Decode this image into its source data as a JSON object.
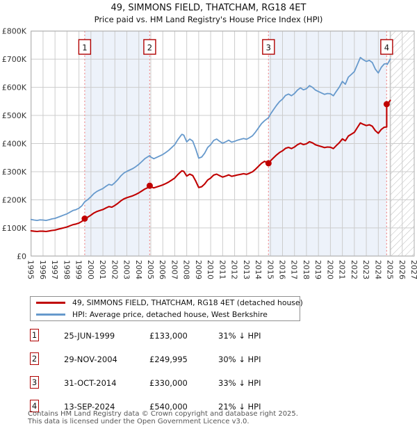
{
  "title": "49, SIMMONS FIELD, THATCHAM, RG18 4ET",
  "subtitle": "Price paid vs. HM Land Registry's House Price Index (HPI)",
  "legend": {
    "items": [
      {
        "label": "49, SIMMONS FIELD, THATCHAM, RG18 4ET (detached house)",
        "color": "#c00000"
      },
      {
        "label": "HPI: Average price, detached house, West Berkshire",
        "color": "#6699cc"
      }
    ]
  },
  "table": {
    "rows": [
      {
        "num": "1",
        "date": "25-JUN-1999",
        "price": "£133,000",
        "vs_hpi": "31% ↓ HPI"
      },
      {
        "num": "2",
        "date": "29-NOV-2004",
        "price": "£249,995",
        "vs_hpi": "30% ↓ HPI"
      },
      {
        "num": "3",
        "date": "31-OCT-2014",
        "price": "£330,000",
        "vs_hpi": "33% ↓ HPI"
      },
      {
        "num": "4",
        "date": "13-SEP-2024",
        "price": "£540,000",
        "vs_hpi": "21% ↓ HPI"
      }
    ]
  },
  "footer": {
    "line1": "Contains HM Land Registry data © Crown copyright and database right 2025.",
    "line2": "This data is licensed under the Open Government Licence v3.0."
  },
  "chart_data": {
    "type": "line",
    "title": "49, SIMMONS FIELD, THATCHAM, RG18 4ET",
    "subtitle": "Price paid vs. HM Land Registry's House Price Index (HPI)",
    "units": "GBP thousands",
    "xlim": [
      1995,
      2027
    ],
    "ylim": [
      0,
      800
    ],
    "grid": true,
    "legend_position": "bottom",
    "x_ticks": [
      1995,
      1996,
      1997,
      1998,
      1999,
      2000,
      2001,
      2002,
      2003,
      2004,
      2005,
      2006,
      2007,
      2008,
      2009,
      2010,
      2011,
      2012,
      2013,
      2014,
      2015,
      2016,
      2017,
      2018,
      2019,
      2020,
      2021,
      2022,
      2023,
      2024,
      2025,
      2026,
      2027
    ],
    "y_ticks": [
      {
        "value": 0,
        "label": "£0"
      },
      {
        "value": 100,
        "label": "£100K"
      },
      {
        "value": 200,
        "label": "£200K"
      },
      {
        "value": 300,
        "label": "£300K"
      },
      {
        "value": 400,
        "label": "£400K"
      },
      {
        "value": 500,
        "label": "£500K"
      },
      {
        "value": 600,
        "label": "£600K"
      },
      {
        "value": 700,
        "label": "£700K"
      },
      {
        "value": 800,
        "label": "£800K"
      }
    ],
    "colors": {
      "price_paid": "#c00000",
      "hpi": "#6699cc",
      "sale_dashed_line": "#f08a8a",
      "sale_flag_border": "#b00000",
      "ownership_band": "#edf2fa",
      "grid": "#cccccc",
      "plot_border": "#adadad",
      "hatch": "#bbbbbb",
      "data_end_line": "#909090",
      "tick_text": "#333333"
    },
    "shaded_bands": [
      [
        1999.48,
        2004.91
      ],
      [
        2014.83,
        2024.7
      ]
    ],
    "hatch_future_start": 2025.0,
    "sales": [
      {
        "n": "1",
        "year": 1999.48,
        "date": "25-JUN-1999",
        "price_k": 133,
        "pct_vs_hpi": "31% ↓ HPI"
      },
      {
        "n": "2",
        "year": 2004.91,
        "date": "29-NOV-2004",
        "price_k": 249.995,
        "pct_vs_hpi": "30% ↓ HPI"
      },
      {
        "n": "3",
        "year": 2014.83,
        "date": "31-OCT-2014",
        "price_k": 330,
        "pct_vs_hpi": "33% ↓ HPI"
      },
      {
        "n": "4",
        "year": 2024.7,
        "date": "13-SEP-2024",
        "price_k": 540,
        "pct_vs_hpi": "21% ↓ HPI"
      }
    ],
    "series": [
      {
        "name": "HPI: Average price, detached house, West Berkshire",
        "color": "#6699cc",
        "width": 1.8,
        "points": [
          [
            1995,
            130
          ],
          [
            1995.25,
            128
          ],
          [
            1995.5,
            126.5
          ],
          [
            1995.75,
            128.5
          ],
          [
            1996,
            128
          ],
          [
            1996.25,
            126.5
          ],
          [
            1996.5,
            129
          ],
          [
            1996.75,
            132
          ],
          [
            1997,
            134
          ],
          [
            1997.25,
            138
          ],
          [
            1997.5,
            142
          ],
          [
            1997.75,
            146
          ],
          [
            1998,
            150
          ],
          [
            1998.25,
            156
          ],
          [
            1998.5,
            162
          ],
          [
            1998.75,
            165
          ],
          [
            1999,
            170
          ],
          [
            1999.25,
            179
          ],
          [
            1999.48,
            193
          ],
          [
            1999.75,
            201
          ],
          [
            2000,
            211
          ],
          [
            2000.25,
            222
          ],
          [
            2000.5,
            230
          ],
          [
            2000.75,
            235
          ],
          [
            2001,
            240
          ],
          [
            2001.25,
            248
          ],
          [
            2001.5,
            255
          ],
          [
            2001.75,
            252
          ],
          [
            2002,
            261
          ],
          [
            2002.25,
            272
          ],
          [
            2002.5,
            285
          ],
          [
            2002.75,
            295
          ],
          [
            2003,
            301
          ],
          [
            2003.25,
            306
          ],
          [
            2003.5,
            311
          ],
          [
            2003.75,
            318
          ],
          [
            2004,
            326
          ],
          [
            2004.25,
            336
          ],
          [
            2004.5,
            346
          ],
          [
            2004.75,
            353
          ],
          [
            2004.91,
            357
          ],
          [
            2005,
            352
          ],
          [
            2005.25,
            346
          ],
          [
            2005.5,
            351
          ],
          [
            2005.75,
            356
          ],
          [
            2006,
            361
          ],
          [
            2006.25,
            368
          ],
          [
            2006.5,
            376
          ],
          [
            2006.75,
            386
          ],
          [
            2007,
            396
          ],
          [
            2007.25,
            413
          ],
          [
            2007.5,
            428
          ],
          [
            2007.6,
            433
          ],
          [
            2007.75,
            430
          ],
          [
            2008,
            406
          ],
          [
            2008.25,
            416
          ],
          [
            2008.5,
            409
          ],
          [
            2008.75,
            381
          ],
          [
            2009,
            348
          ],
          [
            2009.25,
            352
          ],
          [
            2009.5,
            366
          ],
          [
            2009.75,
            386
          ],
          [
            2010,
            396
          ],
          [
            2010.25,
            411
          ],
          [
            2010.5,
            416
          ],
          [
            2010.75,
            408
          ],
          [
            2011,
            401
          ],
          [
            2011.25,
            406
          ],
          [
            2011.5,
            412
          ],
          [
            2011.75,
            405
          ],
          [
            2012,
            408
          ],
          [
            2012.25,
            412
          ],
          [
            2012.5,
            415
          ],
          [
            2012.75,
            418
          ],
          [
            2013,
            415
          ],
          [
            2013.25,
            421
          ],
          [
            2013.5,
            428
          ],
          [
            2013.75,
            441
          ],
          [
            2014,
            456
          ],
          [
            2014.25,
            471
          ],
          [
            2014.5,
            481
          ],
          [
            2014.83,
            492
          ],
          [
            2015,
            505
          ],
          [
            2015.25,
            521
          ],
          [
            2015.5,
            536
          ],
          [
            2015.75,
            549
          ],
          [
            2016,
            558
          ],
          [
            2016.25,
            571
          ],
          [
            2016.5,
            576
          ],
          [
            2016.75,
            570
          ],
          [
            2017,
            578
          ],
          [
            2017.25,
            590
          ],
          [
            2017.5,
            598
          ],
          [
            2017.75,
            591
          ],
          [
            2018,
            595
          ],
          [
            2018.25,
            606
          ],
          [
            2018.5,
            600
          ],
          [
            2018.75,
            590
          ],
          [
            2019,
            585
          ],
          [
            2019.25,
            580
          ],
          [
            2019.5,
            575
          ],
          [
            2019.75,
            578
          ],
          [
            2020,
            577
          ],
          [
            2020.25,
            570
          ],
          [
            2020.5,
            586
          ],
          [
            2020.75,
            601
          ],
          [
            2021,
            621
          ],
          [
            2021.25,
            611
          ],
          [
            2021.5,
            636
          ],
          [
            2021.75,
            646
          ],
          [
            2022,
            656
          ],
          [
            2022.25,
            681
          ],
          [
            2022.5,
            706
          ],
          [
            2022.75,
            698
          ],
          [
            2023,
            692
          ],
          [
            2023.25,
            696
          ],
          [
            2023.5,
            688
          ],
          [
            2023.75,
            665
          ],
          [
            2024,
            651
          ],
          [
            2024.25,
            671
          ],
          [
            2024.5,
            683
          ],
          [
            2024.7,
            684
          ],
          [
            2024.75,
            681
          ],
          [
            2025,
            700
          ]
        ]
      },
      {
        "name": "49, SIMMONS FIELD, THATCHAM, RG18 4ET (detached house)",
        "color": "#c00000",
        "width": 2.1,
        "points": [
          [
            1995,
            89.6
          ],
          [
            1995.25,
            88.2
          ],
          [
            1995.5,
            87.2
          ],
          [
            1995.75,
            88.5
          ],
          [
            1996,
            88.2
          ],
          [
            1996.25,
            87.2
          ],
          [
            1996.5,
            88.9
          ],
          [
            1996.75,
            91
          ],
          [
            1997,
            92.3
          ],
          [
            1997.25,
            95.1
          ],
          [
            1997.5,
            97.9
          ],
          [
            1997.75,
            100.6
          ],
          [
            1998,
            103.4
          ],
          [
            1998.25,
            107.5
          ],
          [
            1998.5,
            111.6
          ],
          [
            1998.75,
            113.7
          ],
          [
            1999,
            117.2
          ],
          [
            1999.25,
            123.4
          ],
          [
            1999.48,
            133
          ],
          [
            1999.75,
            138.5
          ],
          [
            2000,
            145.4
          ],
          [
            2000.25,
            153
          ],
          [
            2000.5,
            158.5
          ],
          [
            2000.75,
            161.9
          ],
          [
            2001,
            165.4
          ],
          [
            2001.25,
            170.9
          ],
          [
            2001.5,
            175.7
          ],
          [
            2001.75,
            173.7
          ],
          [
            2002,
            179.9
          ],
          [
            2002.25,
            187.4
          ],
          [
            2002.5,
            196.4
          ],
          [
            2002.75,
            203.3
          ],
          [
            2003,
            207.4
          ],
          [
            2003.25,
            210.9
          ],
          [
            2003.5,
            214.3
          ],
          [
            2003.75,
            219.1
          ],
          [
            2004,
            224.7
          ],
          [
            2004.25,
            231.5
          ],
          [
            2004.5,
            238.4
          ],
          [
            2004.75,
            243.3
          ],
          [
            2004.91,
            250
          ],
          [
            2005,
            246.5
          ],
          [
            2005.25,
            242.3
          ],
          [
            2005.5,
            245.8
          ],
          [
            2005.75,
            249.3
          ],
          [
            2006,
            252.8
          ],
          [
            2006.25,
            257.7
          ],
          [
            2006.5,
            263.3
          ],
          [
            2006.75,
            270.3
          ],
          [
            2007,
            277.3
          ],
          [
            2007.25,
            289.2
          ],
          [
            2007.5,
            299.7
          ],
          [
            2007.6,
            303.2
          ],
          [
            2007.75,
            301.1
          ],
          [
            2008,
            284.3
          ],
          [
            2008.25,
            291.3
          ],
          [
            2008.5,
            286.4
          ],
          [
            2008.75,
            266.8
          ],
          [
            2009,
            243.7
          ],
          [
            2009.25,
            246.5
          ],
          [
            2009.5,
            256.3
          ],
          [
            2009.75,
            270.3
          ],
          [
            2010,
            277.3
          ],
          [
            2010.25,
            287.8
          ],
          [
            2010.5,
            291.3
          ],
          [
            2010.75,
            285.7
          ],
          [
            2011,
            280.8
          ],
          [
            2011.25,
            284.3
          ],
          [
            2011.5,
            288.5
          ],
          [
            2011.75,
            283.6
          ],
          [
            2012,
            285.7
          ],
          [
            2012.25,
            288.5
          ],
          [
            2012.5,
            290.6
          ],
          [
            2012.75,
            292.7
          ],
          [
            2013,
            290.6
          ],
          [
            2013.25,
            294.8
          ],
          [
            2013.5,
            299.7
          ],
          [
            2013.75,
            308.8
          ],
          [
            2014,
            319.3
          ],
          [
            2014.25,
            329.8
          ],
          [
            2014.5,
            336.8
          ],
          [
            2014.83,
            330
          ],
          [
            2015,
            338.7
          ],
          [
            2015.25,
            349.4
          ],
          [
            2015.5,
            359.5
          ],
          [
            2015.75,
            368.2
          ],
          [
            2016,
            374.3
          ],
          [
            2016.25,
            383
          ],
          [
            2016.5,
            386.3
          ],
          [
            2016.75,
            382.3
          ],
          [
            2017,
            387.7
          ],
          [
            2017.25,
            395.7
          ],
          [
            2017.5,
            401.1
          ],
          [
            2017.75,
            396.4
          ],
          [
            2018,
            399.1
          ],
          [
            2018.25,
            406.5
          ],
          [
            2018.5,
            402.4
          ],
          [
            2018.75,
            395.7
          ],
          [
            2019,
            392.4
          ],
          [
            2019.25,
            389
          ],
          [
            2019.5,
            385.7
          ],
          [
            2019.75,
            387.7
          ],
          [
            2020,
            387
          ],
          [
            2020.25,
            382.3
          ],
          [
            2020.5,
            393
          ],
          [
            2020.75,
            403.1
          ],
          [
            2021,
            416.5
          ],
          [
            2021.25,
            409.8
          ],
          [
            2021.5,
            426.6
          ],
          [
            2021.75,
            433.3
          ],
          [
            2022,
            440
          ],
          [
            2022.25,
            456.8
          ],
          [
            2022.5,
            473.5
          ],
          [
            2022.75,
            468.2
          ],
          [
            2023,
            464.1
          ],
          [
            2023.25,
            466.8
          ],
          [
            2023.5,
            461.5
          ],
          [
            2023.75,
            446
          ],
          [
            2024,
            436.6
          ],
          [
            2024.25,
            450.1
          ],
          [
            2024.5,
            458.1
          ],
          [
            2024.7,
            458.8
          ],
          [
            2024.7,
            540
          ],
          [
            2024.75,
            538.4
          ],
          [
            2025,
            553.4
          ]
        ]
      }
    ]
  }
}
